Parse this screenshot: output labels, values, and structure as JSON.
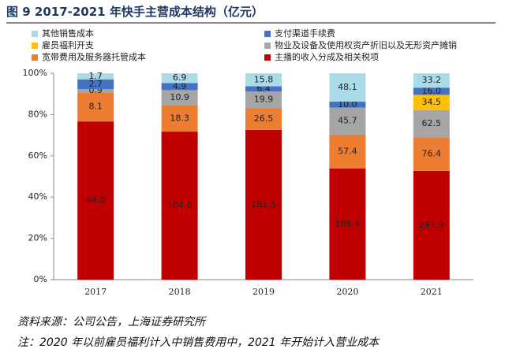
{
  "chart_data": {
    "type": "bar",
    "stack": "percent",
    "title": "图 9 2017-2021 年快手主营成本结构（亿元）",
    "categories": [
      "2017",
      "2018",
      "2019",
      "2020",
      "2021"
    ],
    "series": [
      {
        "name": "主播的收入分成及相关税项",
        "color": "#c00000",
        "values": [
          44.0,
          104.0,
          181.5,
          188.4,
          247.9
        ],
        "value_labels": [
          "44.0",
          "104.0",
          "181.5",
          "188.4",
          "247.9"
        ]
      },
      {
        "name": "宽带费用及服务器托管成本",
        "color": "#ed7d31",
        "values": [
          8.1,
          18.3,
          26.5,
          57.4,
          76.4
        ]
      },
      {
        "name": "物业及设备及使用权资产折旧以及无形资产摊销",
        "color": "#a5a5a5",
        "values": [
          0.9,
          10.9,
          19.9,
          45.7,
          62.5
        ]
      },
      {
        "name": "雇员福利开支",
        "color": "#ffc000",
        "values": [
          null,
          null,
          null,
          null,
          34.5
        ]
      },
      {
        "name": "支付渠道手续费",
        "color": "#4472c4",
        "values": [
          2.7,
          4.9,
          6.4,
          10.0,
          16.0
        ],
        "value_labels": [
          "2.7",
          "4.9",
          "6.4",
          "10.0",
          "16.0"
        ]
      },
      {
        "name": "其他销售成本",
        "color": "#a9dbe8",
        "values": [
          1.7,
          6.9,
          15.8,
          48.1,
          33.2
        ]
      }
    ],
    "ylim": [
      0,
      100
    ],
    "yticks": [
      {
        "value": 0,
        "label": "0%"
      },
      {
        "value": 20,
        "label": "20%"
      },
      {
        "value": 40,
        "label": "40%"
      },
      {
        "value": 60,
        "label": "60%"
      },
      {
        "value": 80,
        "label": "80%"
      },
      {
        "value": 100,
        "label": "100%"
      }
    ],
    "source": "资料来源：公司公告，上海证券研究所",
    "note": "注：2020 年以前雇员福利计入中销售费用中，2021 年开始计入营业成本"
  }
}
